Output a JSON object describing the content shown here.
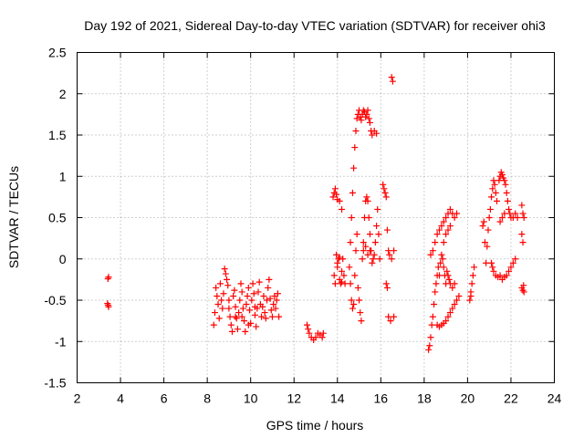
{
  "chart_data": {
    "type": "scatter",
    "title": "Day 192 of 2021, Sidereal Day-to-day VTEC variation (SDTVAR) for receiver ohi3",
    "xlabel": "GPS time / hours",
    "ylabel": "SDTVAR / TECUs",
    "xlim": [
      2,
      24
    ],
    "ylim": [
      -1.5,
      2.5
    ],
    "x_ticks": [
      "2",
      "4",
      "6",
      "8",
      "10",
      "12",
      "14",
      "16",
      "18",
      "20",
      "22",
      "24"
    ],
    "y_ticks": [
      "-1.5",
      "-1",
      "-0.5",
      "0",
      "0.5",
      "1",
      "1.5",
      "2",
      "2.5"
    ],
    "grid": true,
    "marker": "+",
    "marker_color": "#ff0000",
    "series": [
      {
        "name": "SDTVAR",
        "points": [
          [
            3.42,
            -0.24
          ],
          [
            3.45,
            -0.22
          ],
          [
            3.4,
            -0.54
          ],
          [
            3.45,
            -0.58
          ],
          [
            3.43,
            -0.56
          ],
          [
            8.3,
            -0.8
          ],
          [
            8.35,
            -0.65
          ],
          [
            8.4,
            -0.35
          ],
          [
            8.45,
            -0.45
          ],
          [
            8.5,
            -0.55
          ],
          [
            8.55,
            -0.72
          ],
          [
            8.6,
            -0.3
          ],
          [
            8.65,
            -0.5
          ],
          [
            8.7,
            -0.6
          ],
          [
            8.75,
            -0.42
          ],
          [
            8.8,
            -0.12
          ],
          [
            8.85,
            -0.18
          ],
          [
            8.9,
            -0.25
          ],
          [
            8.95,
            -0.32
          ],
          [
            9.0,
            -0.5
          ],
          [
            9.05,
            -0.7
          ],
          [
            9.1,
            -0.8
          ],
          [
            9.15,
            -0.88
          ],
          [
            9.2,
            -0.45
          ],
          [
            9.25,
            -0.38
          ],
          [
            9.3,
            -0.58
          ],
          [
            9.35,
            -0.72
          ],
          [
            9.4,
            -0.85
          ],
          [
            9.45,
            -0.65
          ],
          [
            9.5,
            -0.5
          ],
          [
            9.55,
            -0.3
          ],
          [
            9.6,
            -0.4
          ],
          [
            9.65,
            -0.6
          ],
          [
            9.7,
            -0.75
          ],
          [
            9.75,
            -0.88
          ],
          [
            9.8,
            -0.55
          ],
          [
            9.85,
            -0.45
          ],
          [
            9.9,
            -0.35
          ],
          [
            9.95,
            -0.62
          ],
          [
            10.0,
            -0.78
          ],
          [
            10.05,
            -0.5
          ],
          [
            10.1,
            -0.3
          ],
          [
            10.15,
            -0.42
          ],
          [
            10.2,
            -0.68
          ],
          [
            10.25,
            -0.82
          ],
          [
            10.3,
            -0.6
          ],
          [
            10.35,
            -0.4
          ],
          [
            10.4,
            -0.28
          ],
          [
            10.45,
            -0.55
          ],
          [
            10.5,
            -0.7
          ],
          [
            10.55,
            -0.58
          ],
          [
            10.6,
            -0.45
          ],
          [
            10.65,
            -0.65
          ],
          [
            10.7,
            -0.72
          ],
          [
            10.75,
            -0.5
          ],
          [
            10.8,
            -0.35
          ],
          [
            10.85,
            -0.25
          ],
          [
            10.9,
            -0.48
          ],
          [
            10.95,
            -0.62
          ],
          [
            11.0,
            -0.7
          ],
          [
            11.05,
            -0.55
          ],
          [
            11.1,
            -0.45
          ],
          [
            11.15,
            -0.6
          ],
          [
            11.2,
            -0.5
          ],
          [
            11.25,
            -0.42
          ],
          [
            11.3,
            -0.7
          ],
          [
            9.0,
            -0.6
          ],
          [
            9.3,
            -0.7
          ],
          [
            9.6,
            -0.7
          ],
          [
            9.9,
            -0.8
          ],
          [
            10.2,
            -0.58
          ],
          [
            12.6,
            -0.8
          ],
          [
            12.65,
            -0.85
          ],
          [
            12.7,
            -0.9
          ],
          [
            12.8,
            -0.95
          ],
          [
            12.9,
            -0.98
          ],
          [
            13.0,
            -0.95
          ],
          [
            13.1,
            -0.9
          ],
          [
            13.2,
            -0.92
          ],
          [
            13.3,
            -0.95
          ],
          [
            13.35,
            -0.9
          ],
          [
            13.8,
            0.75
          ],
          [
            13.85,
            0.8
          ],
          [
            13.9,
            0.85
          ],
          [
            13.95,
            0.78
          ],
          [
            14.0,
            0.72
          ],
          [
            14.1,
            0.7
          ],
          [
            14.2,
            0.6
          ],
          [
            13.85,
            -0.2
          ],
          [
            13.9,
            -0.3
          ],
          [
            13.95,
            0.05
          ],
          [
            14.0,
            -0.1
          ],
          [
            14.05,
            0.0
          ],
          [
            14.1,
            -0.25
          ],
          [
            14.15,
            -0.3
          ],
          [
            14.2,
            -0.15
          ],
          [
            14.25,
            0.0
          ],
          [
            14.3,
            -0.2
          ],
          [
            14.35,
            -0.3
          ],
          [
            14.0,
            -0.05
          ],
          [
            14.1,
            0.02
          ],
          [
            14.2,
            -0.28
          ],
          [
            14.6,
            0.2
          ],
          [
            14.65,
            0.5
          ],
          [
            14.7,
            0.8
          ],
          [
            14.75,
            1.1
          ],
          [
            14.8,
            1.35
          ],
          [
            14.85,
            1.55
          ],
          [
            14.9,
            1.7
          ],
          [
            14.95,
            1.75
          ],
          [
            15.0,
            1.8
          ],
          [
            15.05,
            1.72
          ],
          [
            15.1,
            1.68
          ],
          [
            15.15,
            1.75
          ],
          [
            15.2,
            1.8
          ],
          [
            15.25,
            1.78
          ],
          [
            15.3,
            1.72
          ],
          [
            15.35,
            1.75
          ],
          [
            15.4,
            1.8
          ],
          [
            15.45,
            1.7
          ],
          [
            15.5,
            1.65
          ],
          [
            15.55,
            1.55
          ],
          [
            15.6,
            1.5
          ],
          [
            15.7,
            1.55
          ],
          [
            15.8,
            1.52
          ],
          [
            14.55,
            -0.1
          ],
          [
            14.6,
            -0.3
          ],
          [
            14.65,
            -0.5
          ],
          [
            14.7,
            -0.6
          ],
          [
            14.75,
            -0.55
          ],
          [
            14.8,
            -0.2
          ],
          [
            14.85,
            0.1
          ],
          [
            14.9,
            0.3
          ],
          [
            14.95,
            -0.35
          ],
          [
            15.0,
            -0.5
          ],
          [
            15.05,
            -0.65
          ],
          [
            15.1,
            -0.75
          ],
          [
            15.15,
            0.0
          ],
          [
            15.2,
            0.2
          ],
          [
            15.25,
            0.5
          ],
          [
            15.3,
            0.7
          ],
          [
            15.35,
            0.75
          ],
          [
            15.4,
            0.7
          ],
          [
            15.45,
            0.5
          ],
          [
            15.5,
            0.3
          ],
          [
            15.55,
            0.1
          ],
          [
            15.6,
            -0.05
          ],
          [
            15.65,
            0.0
          ],
          [
            15.7,
            0.05
          ],
          [
            15.75,
            0.2
          ],
          [
            15.8,
            0.4
          ],
          [
            15.85,
            0.6
          ],
          [
            15.9,
            0.3
          ],
          [
            15.95,
            0.0
          ],
          [
            15.2,
            0.1
          ],
          [
            15.3,
            0.15
          ],
          [
            15.4,
            0.05
          ],
          [
            15.5,
            0.1
          ],
          [
            16.1,
            0.9
          ],
          [
            16.15,
            0.85
          ],
          [
            16.2,
            0.8
          ],
          [
            16.25,
            0.75
          ],
          [
            16.3,
            0.35
          ],
          [
            16.35,
            0.1
          ],
          [
            16.4,
            0.05
          ],
          [
            16.5,
            0.0
          ],
          [
            16.6,
            0.1
          ],
          [
            16.25,
            -0.3
          ],
          [
            16.3,
            -0.35
          ],
          [
            16.35,
            -0.7
          ],
          [
            16.45,
            -0.75
          ],
          [
            16.6,
            -0.7
          ],
          [
            16.5,
            2.2
          ],
          [
            16.55,
            2.15
          ],
          [
            18.2,
            -1.1
          ],
          [
            18.25,
            -1.05
          ],
          [
            18.3,
            -0.95
          ],
          [
            18.35,
            -0.8
          ],
          [
            18.4,
            -0.7
          ],
          [
            18.45,
            -0.55
          ],
          [
            18.5,
            -0.4
          ],
          [
            18.55,
            -0.3
          ],
          [
            18.6,
            -0.2
          ],
          [
            18.65,
            -0.1
          ],
          [
            18.3,
            0.05
          ],
          [
            18.4,
            0.1
          ],
          [
            18.5,
            0.2
          ],
          [
            18.6,
            0.3
          ],
          [
            18.7,
            0.35
          ],
          [
            18.8,
            0.4
          ],
          [
            18.9,
            0.45
          ],
          [
            19.0,
            0.5
          ],
          [
            19.1,
            0.55
          ],
          [
            19.2,
            0.6
          ],
          [
            19.3,
            0.55
          ],
          [
            19.4,
            0.5
          ],
          [
            19.5,
            0.55
          ],
          [
            18.6,
            -0.8
          ],
          [
            18.7,
            -0.82
          ],
          [
            18.8,
            -0.8
          ],
          [
            18.9,
            -0.78
          ],
          [
            19.0,
            -0.75
          ],
          [
            19.1,
            -0.7
          ],
          [
            19.2,
            -0.65
          ],
          [
            19.3,
            -0.6
          ],
          [
            19.4,
            -0.55
          ],
          [
            19.5,
            -0.5
          ],
          [
            19.6,
            -0.45
          ],
          [
            18.7,
            -0.2
          ],
          [
            18.75,
            -0.05
          ],
          [
            18.8,
            0.05
          ],
          [
            18.85,
            0.0
          ],
          [
            18.9,
            -0.1
          ],
          [
            18.95,
            -0.2
          ],
          [
            19.0,
            -0.3
          ],
          [
            19.05,
            -0.15
          ],
          [
            19.1,
            -0.2
          ],
          [
            19.15,
            -0.25
          ],
          [
            19.2,
            -0.3
          ],
          [
            19.3,
            -0.35
          ],
          [
            19.4,
            -0.3
          ],
          [
            18.9,
            0.2
          ],
          [
            19.0,
            0.3
          ],
          [
            19.1,
            0.35
          ],
          [
            19.2,
            0.4
          ],
          [
            20.1,
            -0.5
          ],
          [
            20.15,
            -0.4
          ],
          [
            20.2,
            -0.3
          ],
          [
            20.25,
            -0.2
          ],
          [
            20.3,
            -0.1
          ],
          [
            20.15,
            -0.45
          ],
          [
            20.7,
            0.4
          ],
          [
            20.75,
            0.45
          ],
          [
            20.8,
            0.2
          ],
          [
            20.85,
            -0.05
          ],
          [
            20.9,
            0.15
          ],
          [
            20.95,
            0.35
          ],
          [
            21.0,
            0.5
          ],
          [
            21.05,
            0.6
          ],
          [
            21.1,
            0.75
          ],
          [
            21.15,
            0.85
          ],
          [
            21.2,
            0.95
          ],
          [
            21.25,
            0.9
          ],
          [
            21.3,
            0.8
          ],
          [
            21.35,
            0.7
          ],
          [
            21.1,
            -0.05
          ],
          [
            21.15,
            -0.1
          ],
          [
            21.2,
            -0.15
          ],
          [
            21.3,
            -0.2
          ],
          [
            21.4,
            -0.22
          ],
          [
            21.5,
            -0.2
          ],
          [
            21.6,
            -0.25
          ],
          [
            21.7,
            -0.22
          ],
          [
            21.8,
            -0.2
          ],
          [
            21.9,
            -0.15
          ],
          [
            22.0,
            -0.1
          ],
          [
            22.1,
            -0.05
          ],
          [
            22.2,
            0.0
          ],
          [
            21.45,
            0.95
          ],
          [
            21.5,
            1.0
          ],
          [
            21.55,
            1.05
          ],
          [
            21.6,
            1.02
          ],
          [
            21.65,
            0.98
          ],
          [
            21.7,
            0.95
          ],
          [
            21.75,
            0.9
          ],
          [
            21.8,
            0.8
          ],
          [
            21.85,
            0.7
          ],
          [
            21.9,
            0.6
          ],
          [
            21.95,
            0.55
          ],
          [
            22.0,
            0.5
          ],
          [
            22.1,
            0.5
          ],
          [
            22.2,
            0.55
          ],
          [
            22.3,
            0.5
          ],
          [
            21.5,
            0.45
          ],
          [
            21.6,
            0.5
          ],
          [
            21.7,
            0.55
          ],
          [
            22.5,
            0.65
          ],
          [
            22.55,
            0.55
          ],
          [
            22.6,
            0.5
          ],
          [
            22.5,
            0.3
          ],
          [
            22.55,
            0.2
          ],
          [
            22.5,
            -0.35
          ],
          [
            22.55,
            -0.38
          ],
          [
            22.6,
            -0.4
          ],
          [
            22.58,
            -0.32
          ]
        ]
      }
    ]
  }
}
